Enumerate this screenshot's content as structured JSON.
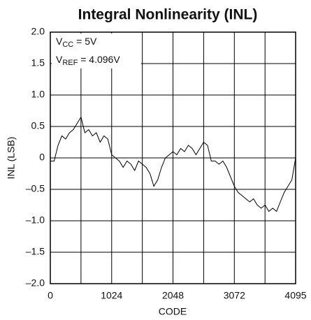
{
  "chart_data": {
    "type": "line",
    "title": "Integral Nonlinearity (INL)",
    "x_label": "CODE",
    "y_label": "INL (LSB)",
    "annotations": [
      {
        "main": "V",
        "sub": "CC",
        "tail": " = 5V"
      },
      {
        "main": "V",
        "sub": "REF",
        "tail": " = 4.096V"
      }
    ],
    "xlim": [
      0,
      4095
    ],
    "ylim": [
      -2,
      2
    ],
    "xticks": [
      0,
      1024,
      2048,
      3072,
      4095
    ],
    "xgrid": [
      512,
      1536,
      2560,
      3584
    ],
    "yticks": [
      {
        "value": 2,
        "label": "2.0"
      },
      1.5,
      {
        "value": 1,
        "label": "1.0"
      },
      0.5,
      0,
      {
        "value": -0.5,
        "label": "–0.5"
      },
      {
        "value": -1,
        "label": "–1.0"
      },
      {
        "value": -1.5,
        "label": "–1.5"
      },
      {
        "value": -2,
        "label": "–2.0"
      }
    ],
    "grid": true,
    "color": "#000000",
    "x": [
      0,
      64,
      128,
      192,
      256,
      320,
      384,
      448,
      512,
      576,
      640,
      704,
      768,
      832,
      896,
      960,
      1024,
      1088,
      1152,
      1216,
      1280,
      1344,
      1408,
      1472,
      1536,
      1600,
      1664,
      1728,
      1792,
      1856,
      1920,
      1984,
      2048,
      2112,
      2176,
      2240,
      2304,
      2368,
      2432,
      2496,
      2560,
      2624,
      2688,
      2752,
      2816,
      2880,
      2944,
      3008,
      3072,
      3136,
      3200,
      3264,
      3328,
      3392,
      3456,
      3520,
      3584,
      3648,
      3712,
      3776,
      3840,
      3904,
      3968,
      4032,
      4095
    ],
    "series": [
      {
        "values": [
          -0.05,
          -0.05,
          0.2,
          0.35,
          0.3,
          0.4,
          0.45,
          0.55,
          0.65,
          0.4,
          0.45,
          0.35,
          0.4,
          0.25,
          0.35,
          0.3,
          0.05,
          0.0,
          -0.05,
          -0.15,
          -0.05,
          -0.1,
          -0.2,
          -0.05,
          -0.1,
          -0.15,
          -0.25,
          -0.45,
          -0.35,
          -0.15,
          0.0,
          0.05,
          0.1,
          0.05,
          0.15,
          0.1,
          0.2,
          0.15,
          0.05,
          0.15,
          0.25,
          0.2,
          -0.05,
          -0.05,
          -0.1,
          -0.05,
          -0.15,
          -0.3,
          -0.45,
          -0.55,
          -0.6,
          -0.65,
          -0.7,
          -0.65,
          -0.75,
          -0.8,
          -0.75,
          -0.85,
          -0.8,
          -0.85,
          -0.7,
          -0.55,
          -0.45,
          -0.35,
          0.0
        ]
      }
    ]
  }
}
